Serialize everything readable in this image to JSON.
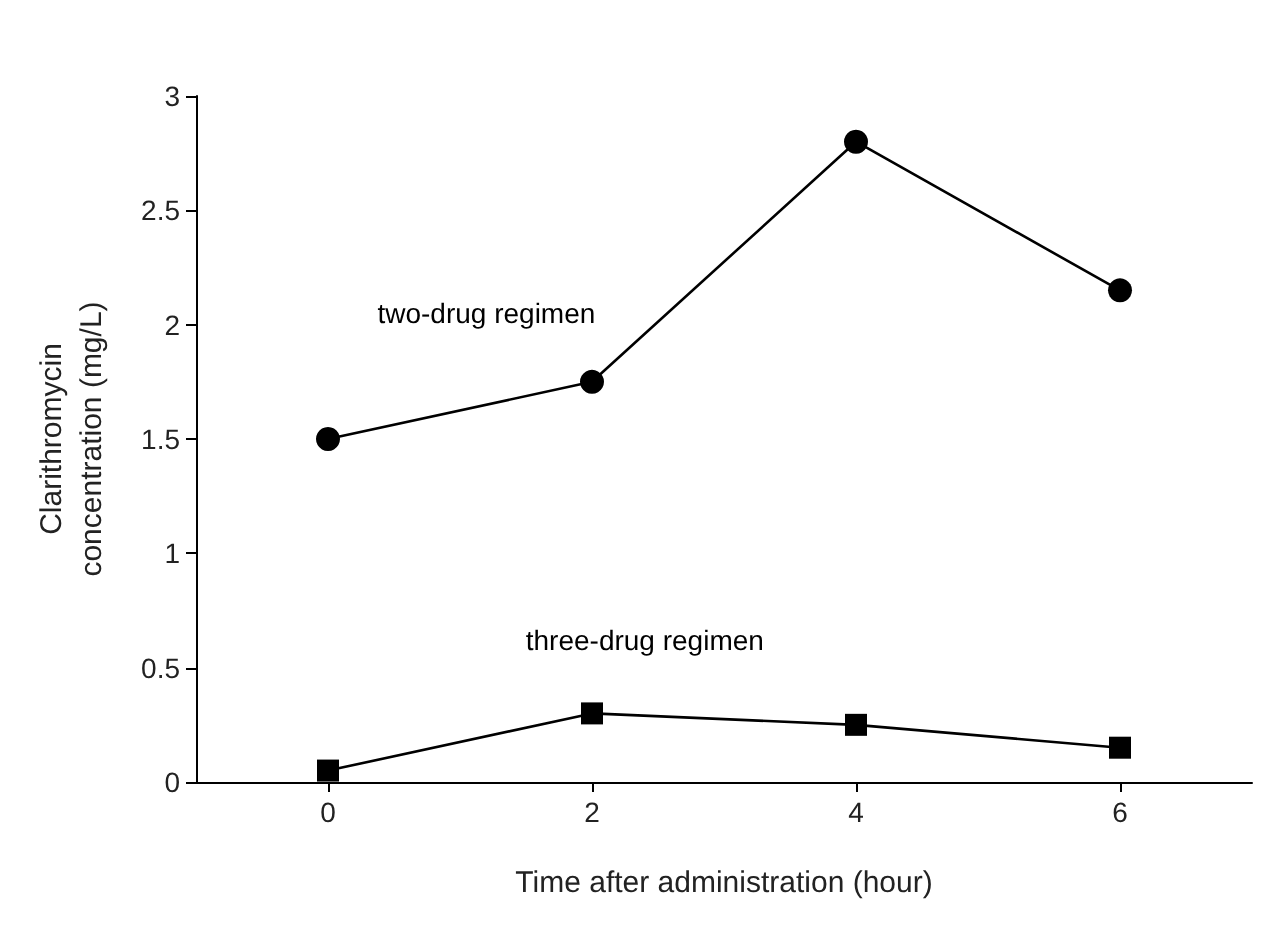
{
  "chart_data": {
    "type": "line",
    "xlabel": "Time after administration (hour)",
    "ylabel": "Clarithromycin\nconcentration (mg/L)",
    "x": [
      0,
      2,
      4,
      6
    ],
    "series": [
      {
        "name": "two-drug regimen",
        "color": "#000000",
        "marker": "circle",
        "values": [
          1.5,
          1.75,
          2.8,
          2.15
        ]
      },
      {
        "name": "three-drug regimen",
        "color": "#000000",
        "marker": "square",
        "values": [
          0.05,
          0.3,
          0.25,
          0.15
        ]
      }
    ],
    "xlim": [
      -1,
      7
    ],
    "xticks": [
      0,
      2,
      4,
      6
    ],
    "ylim": [
      0,
      3
    ],
    "yticks": [
      0,
      0.5,
      1,
      1.5,
      2,
      2.5,
      3
    ],
    "grid": false,
    "legend": false,
    "line_style": "solid"
  }
}
